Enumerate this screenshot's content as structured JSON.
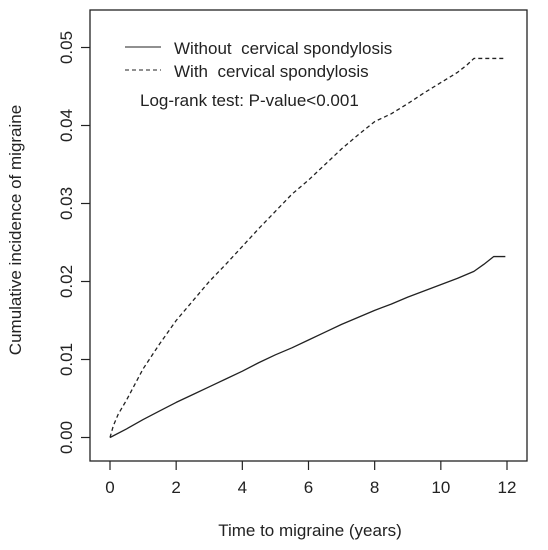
{
  "chart_data": {
    "type": "line",
    "xlabel": "Time to migraine (years)",
    "ylabel": "Cumulative incidence of migraine",
    "xlim": [
      0,
      12
    ],
    "ylim": [
      0,
      0.05
    ],
    "x_ticks": [
      0,
      2,
      4,
      6,
      8,
      10,
      12
    ],
    "x_tick_labels": [
      "0",
      "2",
      "4",
      "6",
      "8",
      "10",
      "12"
    ],
    "y_ticks": [
      0.0,
      0.01,
      0.02,
      0.03,
      0.04,
      0.05
    ],
    "y_tick_labels": [
      "0.00",
      "0.01",
      "0.02",
      "0.03",
      "0.04",
      "0.05"
    ],
    "grid": false,
    "legend_position": "top-left",
    "annotation": "Log-rank test: P-value<0.001",
    "series": [
      {
        "name": "Without  cervical spondylosis",
        "line_style": "solid",
        "color": "#222222",
        "x": [
          0,
          0.5,
          1,
          1.5,
          2,
          2.5,
          3,
          3.5,
          4,
          4.5,
          5,
          5.5,
          6,
          6.5,
          7,
          7.5,
          8,
          8.5,
          9,
          9.5,
          10,
          10.5,
          11,
          11.3,
          11.6,
          11.95
        ],
        "y": [
          0,
          0.0011,
          0.0023,
          0.0034,
          0.0045,
          0.0055,
          0.0065,
          0.0075,
          0.0085,
          0.0096,
          0.0106,
          0.0115,
          0.0125,
          0.0135,
          0.0145,
          0.0154,
          0.0163,
          0.0171,
          0.018,
          0.0188,
          0.0196,
          0.0204,
          0.0213,
          0.0222,
          0.0232,
          0.0232
        ]
      },
      {
        "name": "With  cervical spondylosis",
        "line_style": "dashed",
        "color": "#222222",
        "x": [
          0,
          0.1,
          0.25,
          0.5,
          0.75,
          1,
          1.5,
          2,
          2.5,
          3,
          3.5,
          4,
          4.5,
          5,
          5.5,
          6,
          6.5,
          7,
          7.5,
          8,
          8.5,
          9,
          9.5,
          10,
          10.5,
          10.8,
          11,
          11.3,
          11.95
        ],
        "y": [
          0,
          0.0015,
          0.003,
          0.0048,
          0.0068,
          0.0088,
          0.012,
          0.015,
          0.0175,
          0.02,
          0.0222,
          0.0245,
          0.0268,
          0.029,
          0.0312,
          0.033,
          0.035,
          0.037,
          0.0388,
          0.0405,
          0.0415,
          0.0428,
          0.0442,
          0.0455,
          0.0468,
          0.0478,
          0.0486,
          0.0486,
          0.0486
        ]
      }
    ]
  }
}
